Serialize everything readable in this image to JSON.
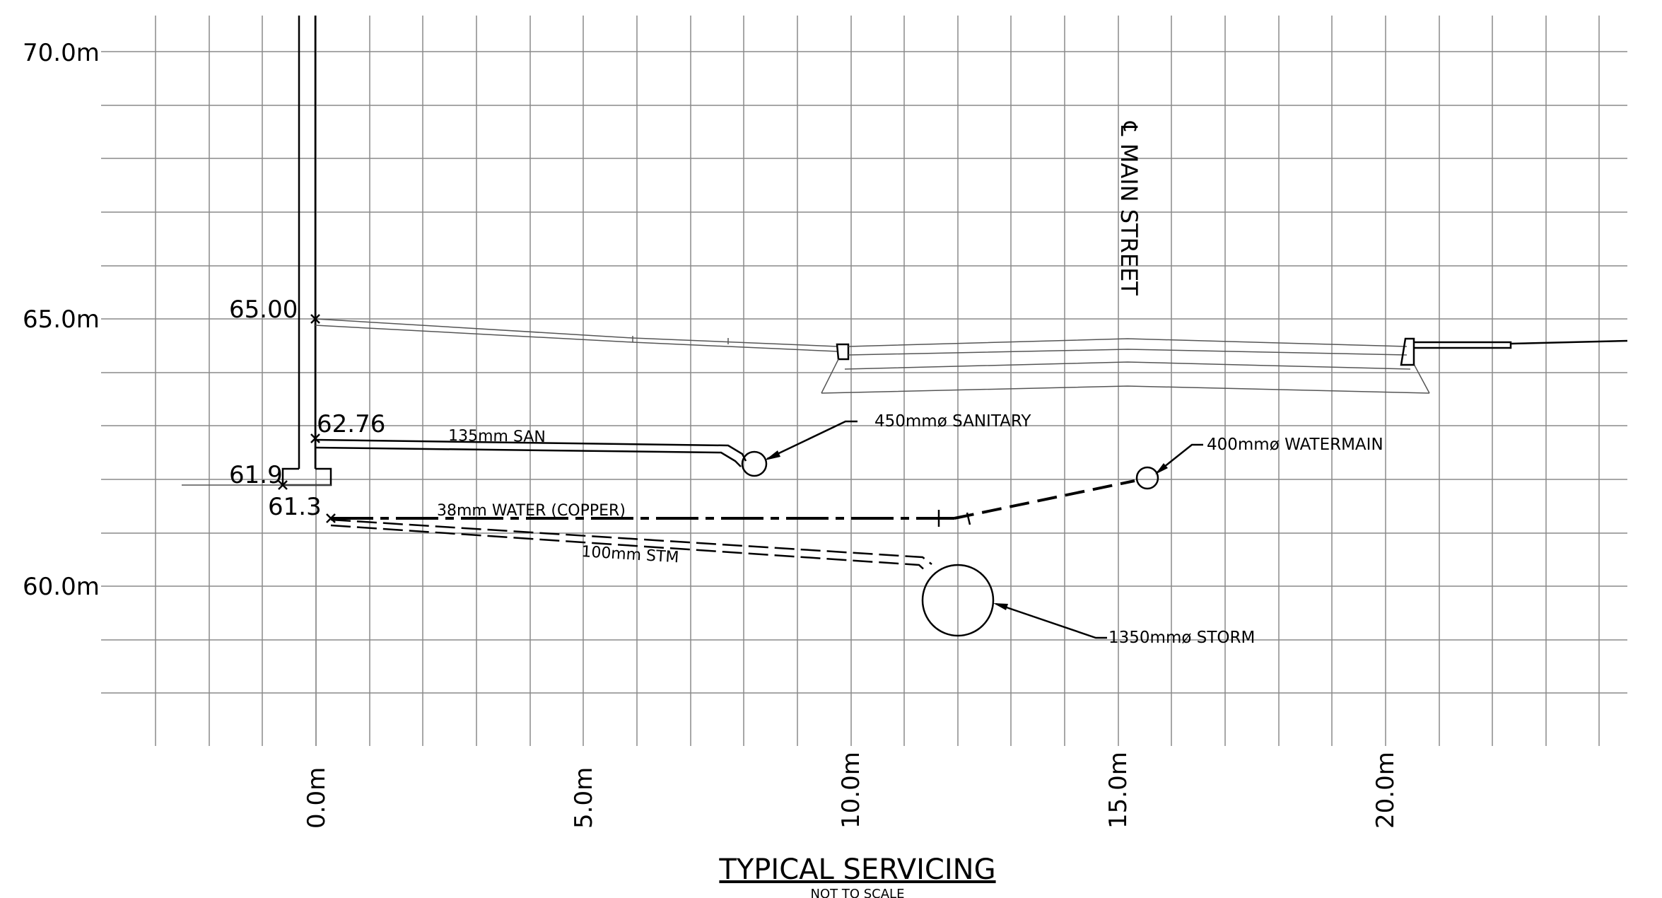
{
  "y_axis_labels": [
    "70.0m",
    "65.0m",
    "60.0m"
  ],
  "x_axis_labels": [
    "0.0m",
    "5.0m",
    "10.0m",
    "15.0m",
    "20.0m"
  ],
  "elevations": {
    "ground": "65.00",
    "san_invert": "62.76",
    "footing": "61.9",
    "water_invert": "61.3"
  },
  "pipe_labels": {
    "san": "135mm SAN",
    "water": "38mm WATER (COPPER)",
    "stm": "100mm STM"
  },
  "callouts": {
    "sanitary": "450mmø SANITARY",
    "watermain": "400mmø WATERMAIN",
    "storm": "1350mmø STORM"
  },
  "street_label": "℄ MAIN STREET",
  "title": "TYPICAL SERVICING",
  "subtitle": "NOT TO SCALE"
}
